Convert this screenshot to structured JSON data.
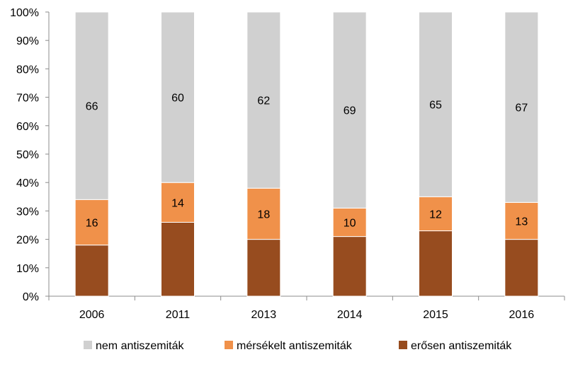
{
  "chart_data": {
    "type": "bar",
    "stacked": true,
    "percent_stacked": true,
    "categories": [
      "2006",
      "2011",
      "2013",
      "2014",
      "2015",
      "2016"
    ],
    "series": [
      {
        "name": "erősen antiszemiták",
        "color": "#974C1F",
        "values": [
          18,
          26,
          20,
          21,
          23,
          20
        ],
        "labels_shown": false
      },
      {
        "name": "mérsékelt antiszemiták",
        "color": "#F0914A",
        "values": [
          16,
          14,
          18,
          10,
          12,
          13
        ],
        "labels_shown": true
      },
      {
        "name": "nem antiszemiták",
        "color": "#D0D0D0",
        "values": [
          66,
          60,
          62,
          69,
          65,
          67
        ],
        "labels_shown": true
      }
    ],
    "ylim": [
      0,
      100
    ],
    "yticks": [
      "0%",
      "10%",
      "20%",
      "30%",
      "40%",
      "50%",
      "60%",
      "70%",
      "80%",
      "90%",
      "100%"
    ],
    "legend_order": [
      "nem antiszemiták",
      "mérsékelt antiszemiták",
      "erősen antiszemiták"
    ],
    "legend_position": "bottom",
    "grid": false,
    "title": "",
    "xlabel": "",
    "ylabel": ""
  }
}
